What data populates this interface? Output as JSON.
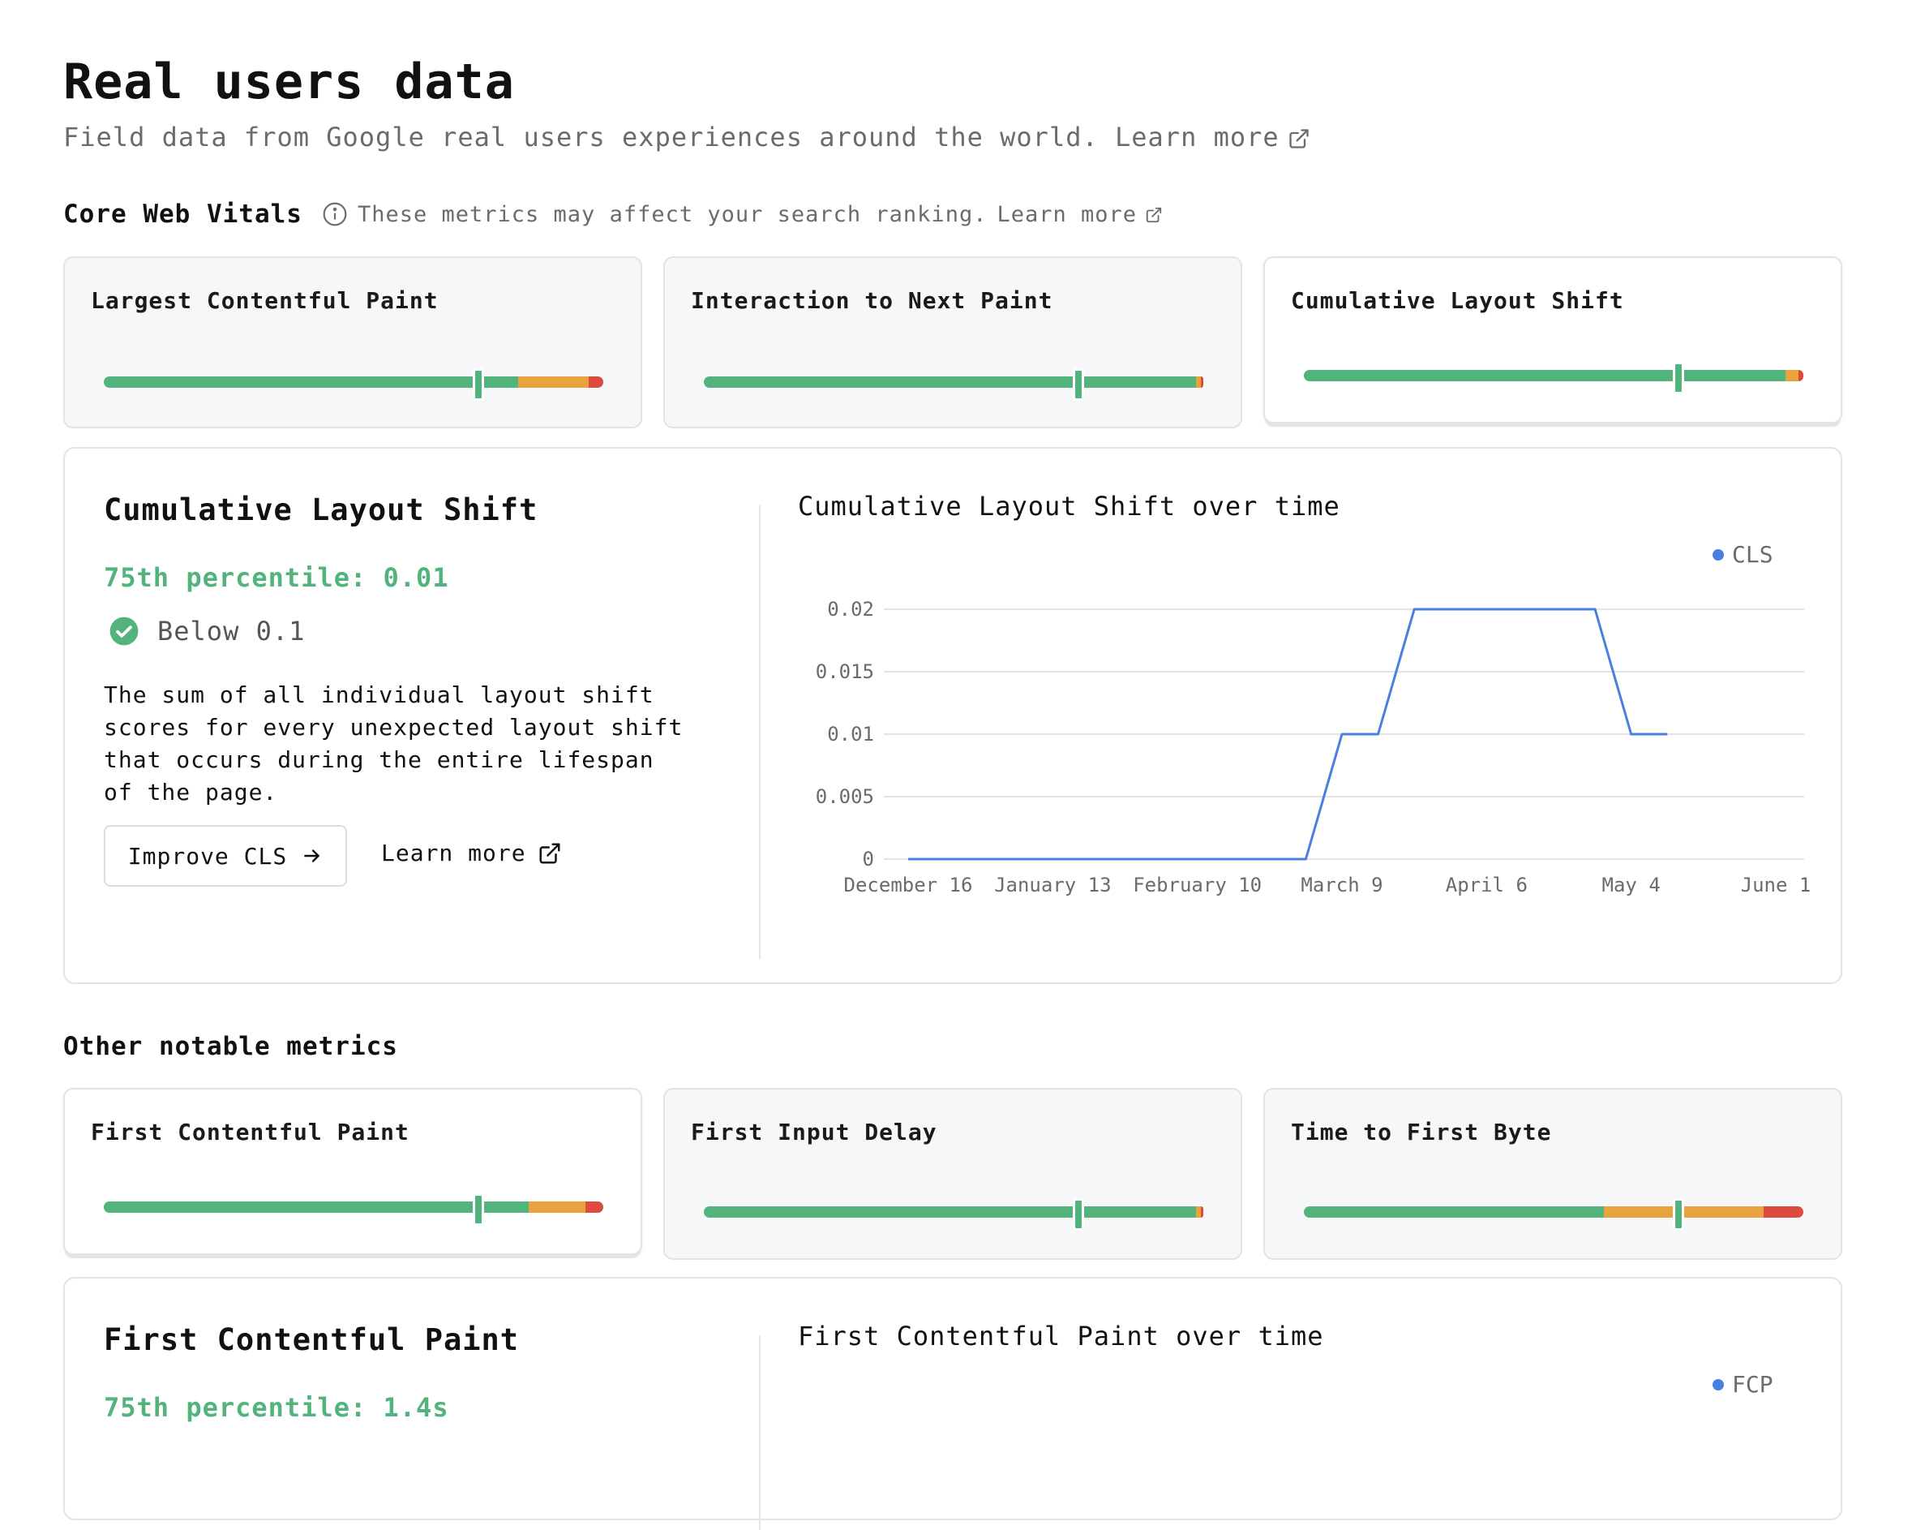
{
  "header": {
    "title": "Real users data",
    "subtitle": "Field data from Google real users experiences around the world.",
    "learn_more": "Learn more"
  },
  "core": {
    "heading": "Core Web Vitals",
    "note": "These metrics may affect your search ranking.",
    "learn_more": "Learn more",
    "cards": [
      {
        "label": "Largest Contentful Paint",
        "segments": [
          {
            "color": "#52b47c",
            "fraction": 0.83
          },
          {
            "color": "#e8a23e",
            "fraction": 0.14
          },
          {
            "color": "#dd4b3f",
            "fraction": 0.03
          }
        ],
        "marker": 0.75
      },
      {
        "label": "Interaction to Next Paint",
        "segments": [
          {
            "color": "#52b47c",
            "fraction": 0.985
          },
          {
            "color": "#e8a23e",
            "fraction": 0.01
          },
          {
            "color": "#dd4b3f",
            "fraction": 0.005
          }
        ],
        "marker": 0.75
      },
      {
        "label": "Cumulative Layout Shift",
        "segments": [
          {
            "color": "#52b47c",
            "fraction": 0.965
          },
          {
            "color": "#e8a23e",
            "fraction": 0.025
          },
          {
            "color": "#dd4b3f",
            "fraction": 0.01
          }
        ],
        "marker": 0.75
      }
    ]
  },
  "cls_detail": {
    "title": "Cumulative Layout Shift",
    "percentile": "75th percentile: 0.01",
    "status": "Below 0.1",
    "description": "The sum of all individual layout shift scores for every unexpected layout shift that occurs during the entire lifespan of the page.",
    "improve_button": "Improve CLS",
    "learn_more": "Learn more",
    "chart_title": "Cumulative Layout Shift over time",
    "legend": "CLS"
  },
  "other": {
    "heading": "Other notable metrics",
    "cards": [
      {
        "label": "First Contentful Paint",
        "segments": [
          {
            "color": "#52b47c",
            "fraction": 0.85
          },
          {
            "color": "#e8a23e",
            "fraction": 0.115
          },
          {
            "color": "#dd4b3f",
            "fraction": 0.035
          }
        ],
        "marker": 0.75
      },
      {
        "label": "First Input Delay",
        "segments": [
          {
            "color": "#52b47c",
            "fraction": 0.985
          },
          {
            "color": "#e8a23e",
            "fraction": 0.01
          },
          {
            "color": "#dd4b3f",
            "fraction": 0.005
          }
        ],
        "marker": 0.75
      },
      {
        "label": "Time to First Byte",
        "segments": [
          {
            "color": "#52b47c",
            "fraction": 0.6
          },
          {
            "color": "#e8a23e",
            "fraction": 0.32
          },
          {
            "color": "#dd4b3f",
            "fraction": 0.08
          }
        ],
        "marker": 0.75
      }
    ]
  },
  "fcp_detail": {
    "title": "First Contentful Paint",
    "percentile": "75th percentile: 1.4s",
    "chart_title": "First Contentful Paint over time",
    "legend": "FCP"
  },
  "chart_data": {
    "type": "line",
    "title": "Cumulative Layout Shift over time",
    "xlabel": "",
    "ylabel": "",
    "x_ticks": [
      "December 16",
      "January 13",
      "February 10",
      "March 9",
      "April 6",
      "May 4",
      "June 1"
    ],
    "y_ticks": [
      "0",
      "0.005",
      "0.01",
      "0.015",
      "0.02"
    ],
    "ylim": [
      0,
      0.02
    ],
    "grid": true,
    "legend_position": "top-right",
    "series": [
      {
        "name": "CLS",
        "color": "#4a7fe0",
        "x": [
          "2023-12-16",
          "2024-01-13",
          "2024-02-10",
          "2024-03-02",
          "2024-03-09",
          "2024-03-16",
          "2024-03-23",
          "2024-04-27",
          "2024-05-04",
          "2024-05-11"
        ],
        "values": [
          0,
          0,
          0,
          0,
          0.01,
          0.01,
          0.02,
          0.02,
          0.01,
          0.01
        ]
      }
    ]
  }
}
